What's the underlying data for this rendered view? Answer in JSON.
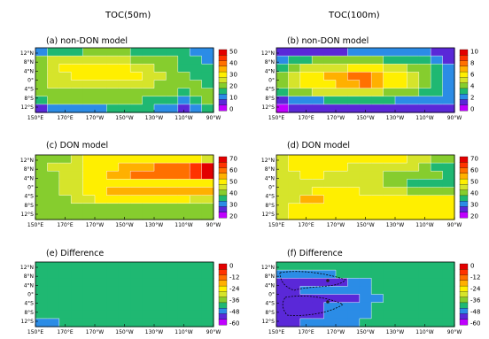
{
  "figure": {
    "column_titles": [
      "TOC(50m)",
      "TOC(100m)"
    ]
  },
  "colors": {
    "scale": [
      "#c000ff",
      "#5a28d8",
      "#2b8ce6",
      "#1fb872",
      "#86cd2e",
      "#d6e42b",
      "#ffef00",
      "#ffb000",
      "#ff7000",
      "#ff3300",
      "#e20000"
    ],
    "contour_line": "#ffffff",
    "dashed_contour": "#000000"
  },
  "chart_data": [
    {
      "type": "heatmap",
      "title": "(a) non-DON model",
      "x_ticks": [
        "150°E",
        "170°E",
        "170°W",
        "150°W",
        "130°W",
        "110°W",
        "90°W"
      ],
      "y_ticks": [
        "12°N",
        "8°N",
        "4°N",
        "0°",
        "4°S",
        "8°S",
        "12°S"
      ],
      "colorbar": {
        "ticks": [
          "50",
          "40",
          "30",
          "20",
          "10",
          "0"
        ],
        "range": [
          0,
          50
        ]
      },
      "rows": [
        [
          2,
          3,
          3,
          3,
          4,
          4,
          4,
          4,
          3,
          3,
          3,
          3,
          3,
          2,
          2
        ],
        [
          4,
          5,
          5,
          5,
          5,
          5,
          5,
          5,
          4,
          4,
          4,
          4,
          3,
          3,
          2
        ],
        [
          4,
          5,
          6,
          6,
          6,
          6,
          6,
          6,
          5,
          5,
          4,
          4,
          3,
          3,
          3
        ],
        [
          4,
          5,
          5,
          6,
          6,
          6,
          6,
          6,
          6,
          5,
          5,
          4,
          4,
          3,
          3
        ],
        [
          4,
          5,
          5,
          5,
          5,
          5,
          5,
          5,
          5,
          5,
          4,
          4,
          4,
          4,
          3
        ],
        [
          4,
          4,
          4,
          4,
          4,
          4,
          4,
          4,
          4,
          4,
          4,
          4,
          3,
          4,
          4
        ],
        [
          3,
          4,
          4,
          4,
          4,
          4,
          4,
          4,
          4,
          3,
          3,
          3,
          2,
          3,
          4
        ],
        [
          1,
          2,
          2,
          2,
          2,
          2,
          3,
          3,
          3,
          3,
          2,
          2,
          1,
          2,
          3
        ]
      ]
    },
    {
      "type": "heatmap",
      "title": "(b) non-DON model",
      "x_ticks": [
        "150°E",
        "170°E",
        "170°W",
        "150°W",
        "130°W",
        "110°W",
        "90°W"
      ],
      "y_ticks": [
        "12°N",
        "8°N",
        "4°N",
        "0°",
        "4°S",
        "8°S",
        "12°S"
      ],
      "colorbar": {
        "ticks": [
          "10",
          "8",
          "6",
          "4",
          "2",
          "0"
        ],
        "range": [
          0,
          10
        ]
      },
      "rows": [
        [
          1,
          1,
          1,
          1,
          1,
          1,
          2,
          2,
          2,
          2,
          2,
          2,
          2,
          1,
          1
        ],
        [
          2,
          3,
          3,
          4,
          4,
          4,
          4,
          4,
          4,
          3,
          3,
          3,
          3,
          2,
          1
        ],
        [
          3,
          4,
          5,
          5,
          5,
          5,
          6,
          6,
          6,
          5,
          5,
          4,
          4,
          3,
          2
        ],
        [
          4,
          5,
          6,
          6,
          7,
          7,
          8,
          8,
          7,
          6,
          6,
          5,
          4,
          3,
          2
        ],
        [
          4,
          5,
          6,
          6,
          6,
          7,
          7,
          8,
          7,
          6,
          6,
          5,
          4,
          3,
          2
        ],
        [
          3,
          4,
          4,
          5,
          5,
          5,
          5,
          5,
          5,
          4,
          4,
          4,
          3,
          3,
          2
        ],
        [
          1,
          2,
          2,
          2,
          3,
          3,
          3,
          3,
          3,
          3,
          2,
          2,
          2,
          2,
          2
        ],
        [
          0,
          1,
          1,
          1,
          1,
          1,
          1,
          1,
          1,
          1,
          1,
          1,
          1,
          1,
          1
        ]
      ]
    },
    {
      "type": "heatmap",
      "title": "(c) DON model",
      "x_ticks": [
        "150°E",
        "170°E",
        "170°W",
        "150°W",
        "130°W",
        "110°W",
        "90°W"
      ],
      "y_ticks": [
        "12°N",
        "8°N",
        "4°N",
        "0°",
        "4°S",
        "8°S",
        "12°S"
      ],
      "colorbar": {
        "ticks": [
          "70",
          "60",
          "50",
          "40",
          "30",
          "20"
        ],
        "range": [
          20,
          70
        ]
      },
      "rows": [
        [
          4,
          4,
          4,
          5,
          6,
          6,
          6,
          6,
          6,
          6,
          6,
          6,
          6,
          6,
          5
        ],
        [
          4,
          5,
          5,
          5,
          6,
          6,
          6,
          7,
          7,
          7,
          8,
          8,
          8,
          9,
          10
        ],
        [
          4,
          4,
          5,
          5,
          6,
          6,
          7,
          7,
          8,
          8,
          8,
          8,
          8,
          9,
          10
        ],
        [
          4,
          4,
          5,
          5,
          6,
          6,
          6,
          6,
          6,
          6,
          6,
          6,
          6,
          6,
          6
        ],
        [
          4,
          4,
          5,
          5,
          6,
          6,
          7,
          7,
          7,
          7,
          7,
          7,
          7,
          7,
          7
        ],
        [
          4,
          4,
          4,
          5,
          5,
          6,
          6,
          6,
          6,
          6,
          6,
          6,
          6,
          5,
          5
        ],
        [
          4,
          4,
          4,
          4,
          4,
          4,
          4,
          4,
          4,
          4,
          4,
          4,
          4,
          4,
          4
        ],
        [
          4,
          4,
          4,
          4,
          4,
          4,
          4,
          4,
          4,
          4,
          4,
          4,
          4,
          4,
          4
        ]
      ]
    },
    {
      "type": "heatmap",
      "title": "(d) DON model",
      "x_ticks": [
        "150°E",
        "170°E",
        "170°W",
        "150°W",
        "130°W",
        "110°W",
        "90°W"
      ],
      "y_ticks": [
        "12°N",
        "8°N",
        "4°N",
        "0°",
        "4°S",
        "8°S",
        "12°S"
      ],
      "colorbar": {
        "ticks": [
          "70",
          "60",
          "50",
          "40",
          "30",
          "20"
        ],
        "range": [
          20,
          70
        ]
      },
      "rows": [
        [
          5,
          6,
          6,
          6,
          6,
          6,
          6,
          6,
          6,
          6,
          6,
          5,
          5,
          4,
          4
        ],
        [
          5,
          6,
          6,
          6,
          6,
          6,
          5,
          5,
          5,
          5,
          5,
          5,
          4,
          3,
          3
        ],
        [
          5,
          5,
          6,
          6,
          5,
          5,
          5,
          5,
          5,
          4,
          4,
          4,
          4,
          4,
          3
        ],
        [
          5,
          5,
          5,
          5,
          5,
          5,
          5,
          5,
          5,
          4,
          4,
          3,
          3,
          3,
          3
        ],
        [
          5,
          5,
          5,
          6,
          6,
          6,
          6,
          5,
          5,
          5,
          5,
          4,
          4,
          4,
          4
        ],
        [
          5,
          5,
          7,
          7,
          6,
          6,
          6,
          6,
          6,
          6,
          6,
          6,
          6,
          6,
          6
        ],
        [
          5,
          6,
          6,
          6,
          6,
          6,
          6,
          6,
          6,
          6,
          6,
          6,
          6,
          6,
          6
        ],
        [
          5,
          6,
          6,
          6,
          6,
          6,
          6,
          6,
          6,
          6,
          6,
          6,
          6,
          6,
          6
        ]
      ]
    },
    {
      "type": "heatmap",
      "title": "(e) Difference",
      "x_ticks": [
        "150°E",
        "170°E",
        "170°W",
        "150°W",
        "130°W",
        "110°W",
        "90°W"
      ],
      "y_ticks": [
        "12°N",
        "8°N",
        "4°N",
        "0°",
        "4°S",
        "8°S",
        "12°S"
      ],
      "colorbar": {
        "ticks": [
          "0",
          "-12",
          "-24",
          "-36",
          "-48",
          "-60"
        ],
        "range": [
          -60,
          0
        ]
      },
      "rows": [
        [
          3,
          3,
          3,
          3,
          3,
          3,
          3,
          3,
          3,
          3,
          3,
          3,
          3,
          3,
          3
        ],
        [
          3,
          3,
          3,
          3,
          3,
          3,
          3,
          3,
          3,
          3,
          3,
          3,
          3,
          3,
          3
        ],
        [
          3,
          3,
          3,
          3,
          3,
          3,
          3,
          3,
          3,
          3,
          3,
          3,
          3,
          3,
          3
        ],
        [
          3,
          3,
          3,
          3,
          3,
          3,
          3,
          3,
          3,
          3,
          3,
          3,
          3,
          3,
          3
        ],
        [
          3,
          3,
          3,
          3,
          3,
          3,
          3,
          3,
          3,
          3,
          3,
          3,
          3,
          3,
          3
        ],
        [
          3,
          3,
          3,
          3,
          3,
          3,
          3,
          3,
          3,
          3,
          3,
          3,
          3,
          3,
          3
        ],
        [
          3,
          3,
          3,
          3,
          3,
          3,
          3,
          3,
          3,
          3,
          3,
          3,
          3,
          3,
          3
        ],
        [
          2,
          2,
          3,
          3,
          3,
          3,
          3,
          3,
          3,
          3,
          3,
          3,
          3,
          3,
          3
        ]
      ]
    },
    {
      "type": "heatmap",
      "title": "(f) Difference",
      "x_ticks": [
        "150°E",
        "170°E",
        "170°W",
        "150°W",
        "130°W",
        "110°W",
        "90°W"
      ],
      "y_ticks": [
        "12°N",
        "8°N",
        "4°N",
        "0°",
        "4°S",
        "8°S",
        "12°S"
      ],
      "colorbar": {
        "ticks": [
          "0",
          "-12",
          "-24",
          "-36",
          "-48",
          "-60"
        ],
        "range": [
          -60,
          0
        ]
      },
      "rows": [
        [
          3,
          3,
          3,
          3,
          3,
          3,
          3,
          3,
          3,
          3,
          3,
          3,
          3,
          3,
          3
        ],
        [
          2,
          2,
          2,
          2,
          2,
          3,
          3,
          3,
          3,
          3,
          3,
          3,
          3,
          3,
          3
        ],
        [
          1,
          1,
          1,
          1,
          1,
          1,
          2,
          2,
          3,
          3,
          3,
          3,
          3,
          3,
          3
        ],
        [
          1,
          1,
          2,
          2,
          2,
          2,
          2,
          2,
          3,
          3,
          3,
          3,
          3,
          3,
          3
        ],
        [
          1,
          1,
          1,
          1,
          1,
          1,
          1,
          2,
          2,
          3,
          3,
          3,
          3,
          3,
          3
        ],
        [
          1,
          1,
          1,
          1,
          2,
          2,
          2,
          2,
          3,
          3,
          3,
          3,
          3,
          3,
          3
        ],
        [
          1,
          1,
          1,
          1,
          2,
          2,
          2,
          2,
          3,
          3,
          3,
          3,
          3,
          3,
          3
        ],
        [
          1,
          1,
          2,
          2,
          2,
          2,
          2,
          3,
          3,
          3,
          3,
          3,
          3,
          3,
          3
        ]
      ]
    }
  ]
}
